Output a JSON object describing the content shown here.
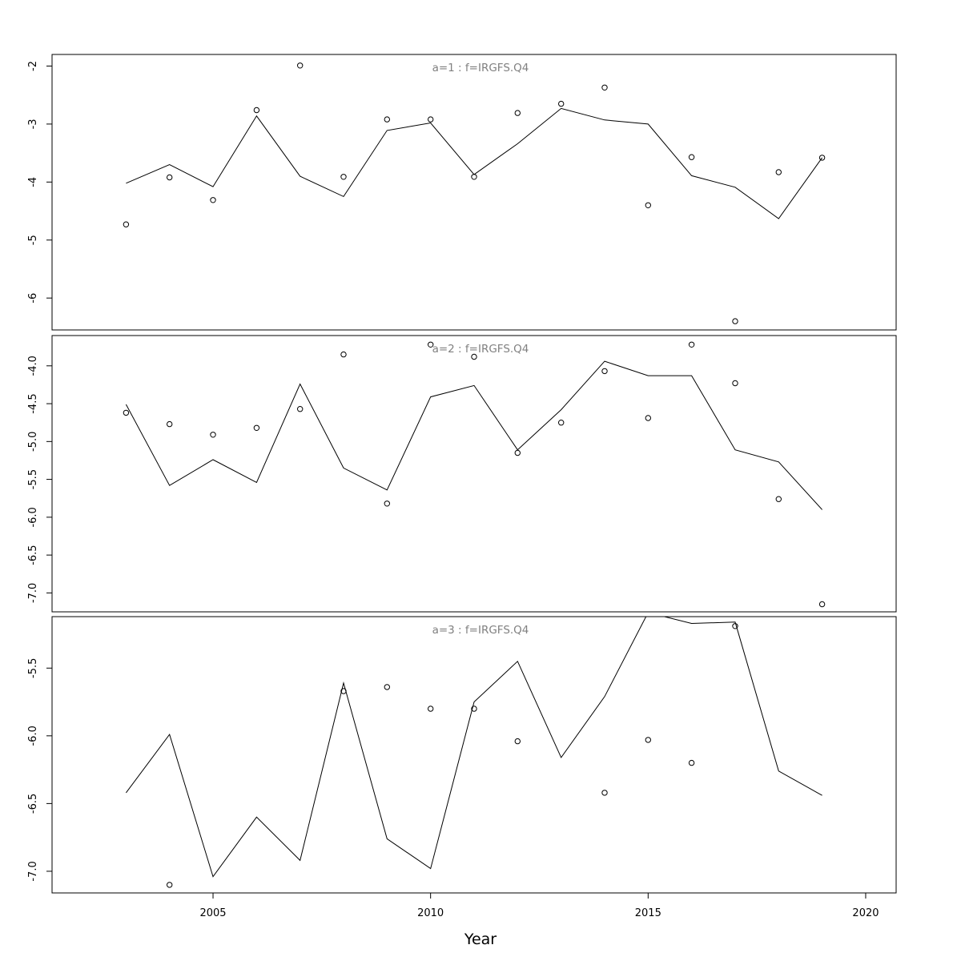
{
  "chart_data": {
    "type": "line",
    "xlabel": "Year",
    "x_ticks": [
      "2005",
      "2010",
      "2015",
      "2020"
    ],
    "xlim": [
      2001.3,
      2020.7
    ],
    "panels": [
      {
        "title": "a=1  :  f=IRGFS.Q4",
        "ylim": [
          -6.55,
          -1.8
        ],
        "y_ticks": [
          "-2",
          "-3",
          "-4",
          "-5",
          "-6"
        ],
        "y_tick_values": [
          -2,
          -3,
          -4,
          -5,
          -6
        ],
        "series": [
          {
            "kind": "line",
            "x": [
              2003,
              2004,
              2005,
              2006,
              2007,
              2008,
              2009,
              2010,
              2011,
              2012,
              2013,
              2014,
              2015,
              2016,
              2017,
              2018,
              2019
            ],
            "y": [
              -4.02,
              -3.7,
              -4.08,
              -2.86,
              -3.9,
              -4.25,
              -3.11,
              -2.98,
              -3.87,
              -3.34,
              -2.73,
              -2.93,
              -3.0,
              -3.89,
              -4.09,
              -4.63,
              -3.58
            ]
          },
          {
            "kind": "points",
            "x": [
              2003,
              2004,
              2005,
              2006,
              2007,
              2008,
              2009,
              2010,
              2011,
              2012,
              2013,
              2014,
              2015,
              2016,
              2017,
              2018,
              2019
            ],
            "y": [
              -4.73,
              -3.92,
              -4.31,
              -2.76,
              -1.99,
              -3.91,
              -2.92,
              -2.92,
              -3.91,
              -2.81,
              -2.65,
              -2.37,
              -4.4,
              -3.57,
              -6.4,
              -3.83,
              -3.58
            ]
          }
        ]
      },
      {
        "title": "a=2  :  f=IRGFS.Q4",
        "ylim": [
          -7.25,
          -3.6
        ],
        "y_ticks": [
          "-4.0",
          "-4.5",
          "-5.0",
          "-5.5",
          "-6.0",
          "-6.5",
          "-7.0"
        ],
        "y_tick_values": [
          -4.0,
          -4.5,
          -5.0,
          -5.5,
          -6.0,
          -6.5,
          -7.0
        ],
        "series": [
          {
            "kind": "line",
            "x": [
              2003,
              2004,
              2005,
              2006,
              2007,
              2008,
              2009,
              2010,
              2011,
              2012,
              2013,
              2014,
              2015,
              2016,
              2017,
              2018,
              2019
            ],
            "y": [
              -4.51,
              -5.58,
              -5.24,
              -5.54,
              -4.24,
              -5.35,
              -5.64,
              -4.41,
              -4.26,
              -5.11,
              -4.58,
              -3.94,
              -4.13,
              -4.13,
              -5.11,
              -5.27,
              -5.9
            ]
          },
          {
            "kind": "points",
            "x": [
              2003,
              2004,
              2005,
              2006,
              2007,
              2008,
              2009,
              2010,
              2011,
              2012,
              2013,
              2014,
              2015,
              2016,
              2017,
              2018,
              2019
            ],
            "y": [
              -4.62,
              -4.77,
              -4.91,
              -4.82,
              -4.57,
              -3.85,
              -5.82,
              -3.72,
              -3.88,
              -5.15,
              -4.75,
              -4.07,
              -4.69,
              -3.72,
              -4.23,
              -5.76,
              -7.15
            ]
          }
        ]
      },
      {
        "title": "a=3  :  f=IRGFS.Q4",
        "ylim": [
          -7.16,
          -5.12
        ],
        "y_ticks": [
          "-5.5",
          "-6.0",
          "-6.5",
          "-7.0"
        ],
        "y_tick_values": [
          -5.5,
          -6.0,
          -6.5,
          -7.0
        ],
        "series": [
          {
            "kind": "line",
            "x": [
              2003,
              2004,
              2005,
              2006,
              2007,
              2008,
              2009,
              2010,
              2011,
              2012,
              2013,
              2014,
              2015,
              2016,
              2017,
              2018,
              2019
            ],
            "y": [
              -6.42,
              -5.99,
              -7.04,
              -6.6,
              -6.92,
              -5.61,
              -6.76,
              -6.98,
              -5.75,
              -5.45,
              -6.16,
              -5.71,
              -5.09,
              -5.17,
              -5.16,
              -6.26,
              -6.44
            ]
          },
          {
            "kind": "points",
            "x": [
              2004,
              2008,
              2009,
              2010,
              2011,
              2012,
              2014,
              2015,
              2016,
              2017
            ],
            "y": [
              -7.1,
              -5.67,
              -5.64,
              -5.8,
              -5.8,
              -6.04,
              -6.42,
              -6.03,
              -6.2,
              -5.19
            ]
          }
        ]
      }
    ]
  }
}
